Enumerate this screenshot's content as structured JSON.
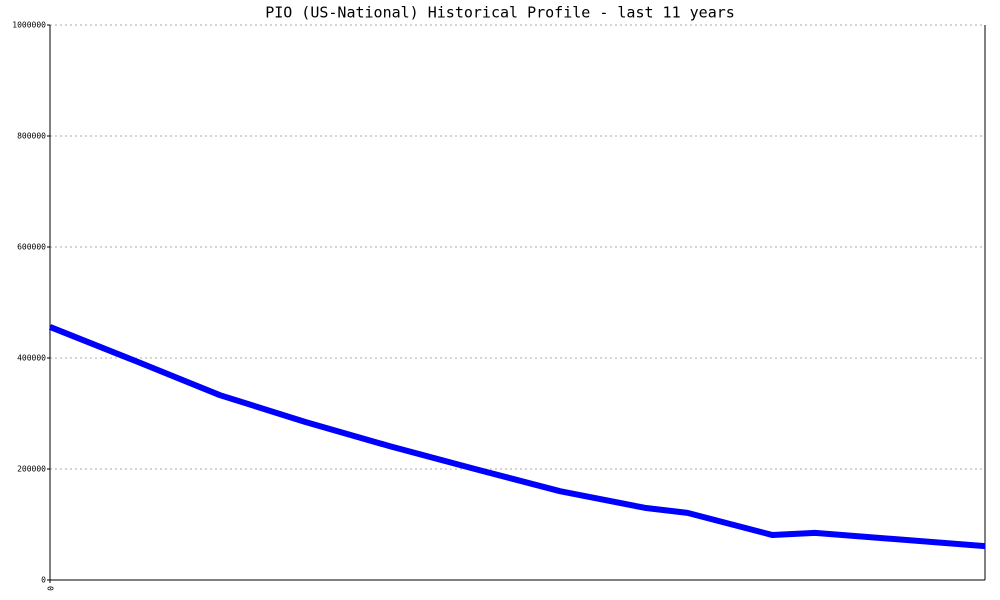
{
  "chart_data": {
    "type": "line",
    "title": "PIO (US-National) Historical Profile - last 11 years",
    "x": [
      0,
      1,
      2,
      3,
      4,
      5,
      6,
      7,
      7.5,
      8.5,
      9,
      11
    ],
    "series": [
      {
        "color": "#0000ff",
        "values": [
          456000,
          395000,
          333000,
          285000,
          241000,
          200000,
          160000,
          130000,
          121000,
          81000,
          85000,
          61000
        ]
      }
    ],
    "xlim": [
      0,
      11
    ],
    "xticks": [
      0
    ],
    "ylim": [
      0,
      1000000
    ],
    "yticks": [
      0,
      200000,
      400000,
      600000,
      800000,
      1000000
    ],
    "grid": true
  }
}
